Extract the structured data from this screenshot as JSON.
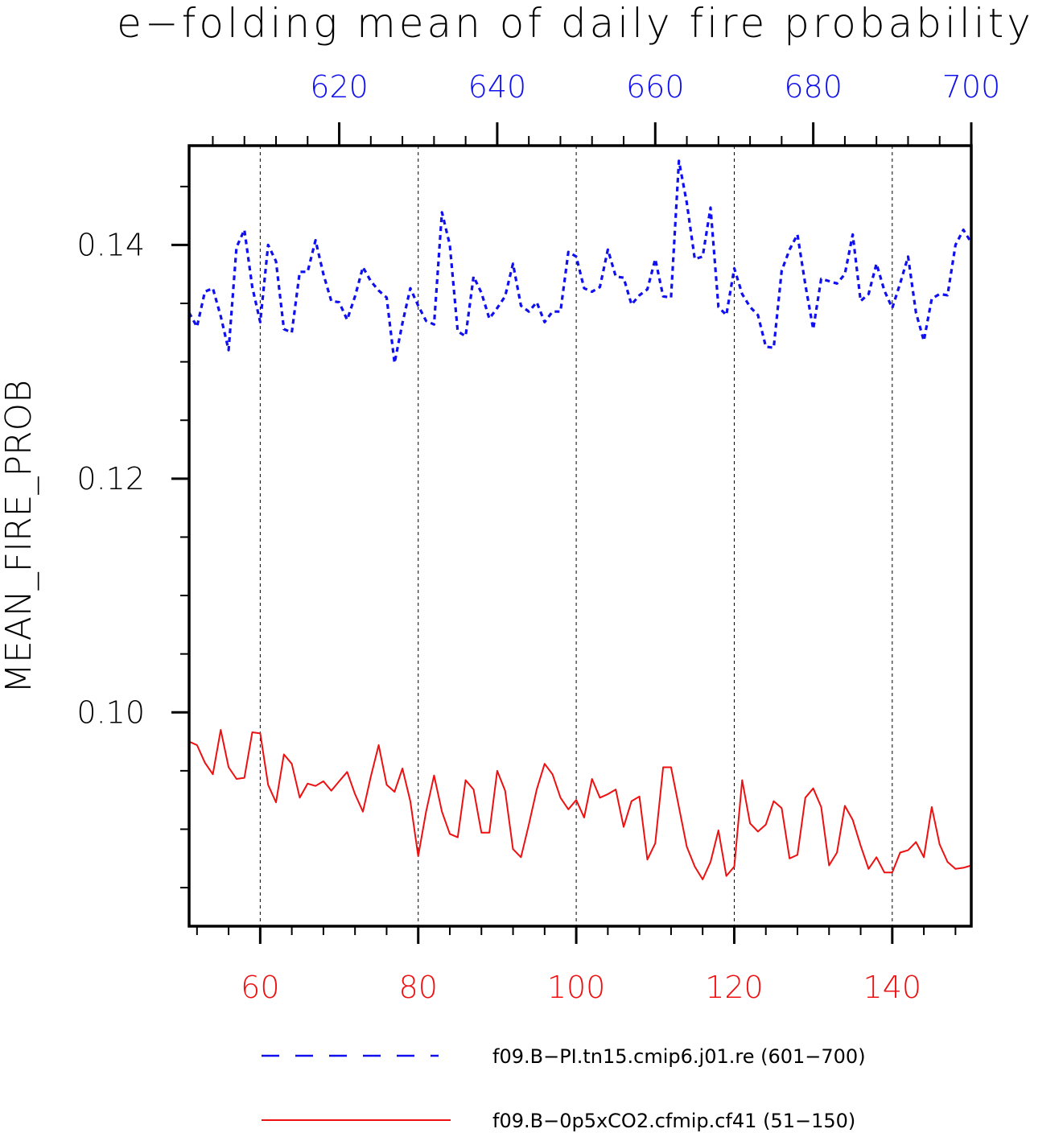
{
  "chart_data": {
    "type": "line",
    "title": "e−folding mean of daily fire probability",
    "ylabel": "MEAN_FIRE_PROB",
    "ylim": [
      0.0817,
      0.1485
    ],
    "y_ticks": [
      0.1,
      0.12,
      0.14
    ],
    "y_tick_labels": [
      "0.10",
      "0.12",
      "0.14"
    ],
    "y_minor_step": 0.005,
    "grid": "vertical dashed lines at major bottom-axis ticks",
    "bottom_axis": {
      "xlim": [
        51,
        150
      ],
      "ticks": [
        60,
        80,
        100,
        120,
        140
      ],
      "tick_labels": [
        "60",
        "80",
        "100",
        "120",
        "140"
      ],
      "color": "#ee1010"
    },
    "top_axis": {
      "xlim": [
        601,
        700
      ],
      "ticks": [
        620,
        640,
        660,
        680,
        700
      ],
      "tick_labels": [
        "620",
        "640",
        "660",
        "680",
        "700"
      ],
      "color": "#1010ee"
    },
    "series": [
      {
        "name": "f09.B−PI.tn15.cmip6.j01.re (601−700)",
        "axis": "top",
        "x_start": 601,
        "color": "#1010ee",
        "style": "dashed",
        "values": [
          0.1342,
          0.133,
          0.136,
          0.1363,
          0.1339,
          0.131,
          0.1398,
          0.1413,
          0.1364,
          0.1334,
          0.14,
          0.1386,
          0.1328,
          0.1325,
          0.1377,
          0.1377,
          0.1404,
          0.1375,
          0.1352,
          0.1351,
          0.1336,
          0.1356,
          0.1381,
          0.1369,
          0.1361,
          0.1355,
          0.1299,
          0.1333,
          0.1363,
          0.1348,
          0.1335,
          0.1332,
          0.1428,
          0.14,
          0.1326,
          0.1322,
          0.1373,
          0.1359,
          0.1337,
          0.1346,
          0.1356,
          0.1384,
          0.1348,
          0.1343,
          0.1351,
          0.1334,
          0.1343,
          0.1343,
          0.1394,
          0.139,
          0.1363,
          0.136,
          0.1364,
          0.1396,
          0.1373,
          0.1372,
          0.1349,
          0.1357,
          0.1362,
          0.1388,
          0.1356,
          0.1355,
          0.1472,
          0.1436,
          0.1388,
          0.139,
          0.1432,
          0.1347,
          0.134,
          0.138,
          0.1358,
          0.1347,
          0.134,
          0.1313,
          0.1312,
          0.1378,
          0.1396,
          0.1409,
          0.1366,
          0.1328,
          0.1371,
          0.1369,
          0.1367,
          0.1375,
          0.1409,
          0.1352,
          0.1358,
          0.1384,
          0.1361,
          0.1346,
          0.1367,
          0.139,
          0.1342,
          0.1318,
          0.1354,
          0.1358,
          0.1357,
          0.14,
          0.1413,
          0.1402
        ]
      },
      {
        "name": "f09.B−0p5xCO2.cfmip.cf41 (51−150)",
        "axis": "bottom",
        "x_start": 51,
        "color": "#ee1010",
        "style": "solid",
        "values": [
          0.0975,
          0.0972,
          0.0957,
          0.0947,
          0.0985,
          0.0953,
          0.0943,
          0.0944,
          0.0983,
          0.0982,
          0.0938,
          0.0923,
          0.0964,
          0.0956,
          0.0927,
          0.0939,
          0.0937,
          0.0941,
          0.0933,
          0.0941,
          0.0949,
          0.093,
          0.0915,
          0.0945,
          0.0972,
          0.0938,
          0.0932,
          0.0952,
          0.0924,
          0.0877,
          0.0915,
          0.0946,
          0.0915,
          0.0896,
          0.0893,
          0.0942,
          0.0934,
          0.0897,
          0.0897,
          0.095,
          0.0933,
          0.0883,
          0.0876,
          0.0904,
          0.0934,
          0.0956,
          0.0947,
          0.0927,
          0.0917,
          0.0925,
          0.091,
          0.0943,
          0.0927,
          0.093,
          0.0934,
          0.0902,
          0.0924,
          0.0928,
          0.0874,
          0.0888,
          0.0953,
          0.0953,
          0.0919,
          0.0885,
          0.0868,
          0.0857,
          0.0872,
          0.0899,
          0.086,
          0.0868,
          0.0942,
          0.0905,
          0.0898,
          0.0904,
          0.0924,
          0.0918,
          0.0875,
          0.0878,
          0.0927,
          0.0935,
          0.0919,
          0.0869,
          0.088,
          0.092,
          0.0908,
          0.0886,
          0.0866,
          0.0876,
          0.0863,
          0.0863,
          0.088,
          0.0882,
          0.0889,
          0.0876,
          0.0919,
          0.0887,
          0.0872,
          0.0866,
          0.0867,
          0.0869
        ]
      }
    ]
  }
}
